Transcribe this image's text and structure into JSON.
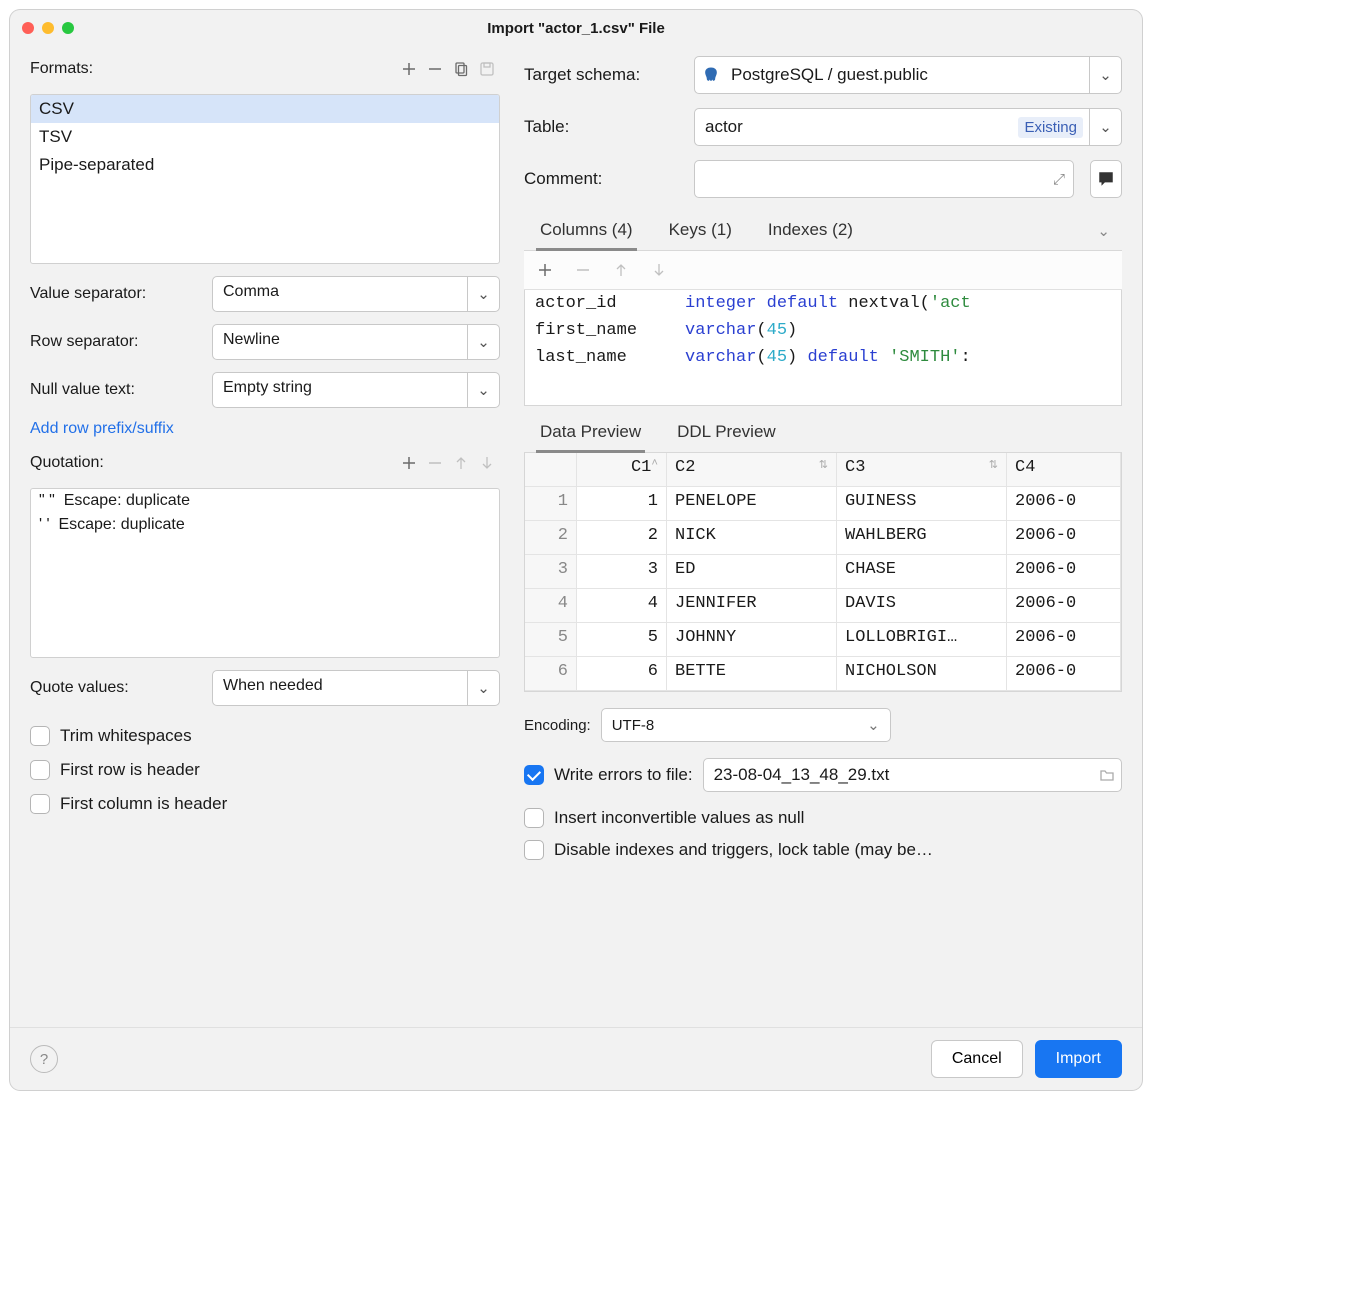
{
  "colors": {
    "close": "#ff5f57",
    "min": "#febc2e",
    "max": "#28c840",
    "accent": "#1876f2"
  },
  "title": "Import \"actor_1.csv\" File",
  "formats": {
    "label": "Formats:",
    "items": [
      "CSV",
      "TSV",
      "Pipe-separated"
    ],
    "selected": 0
  },
  "value_sep": {
    "label": "Value separator:",
    "value": "Comma"
  },
  "row_sep": {
    "label": "Row separator:",
    "value": "Newline"
  },
  "null_text": {
    "label": "Null value text:",
    "value": "Empty string"
  },
  "add_prefix_link": "Add row prefix/suffix",
  "quotation": {
    "label": "Quotation:",
    "items": [
      "\" \"  Escape: duplicate",
      "' '  Escape: duplicate"
    ]
  },
  "quote_values": {
    "label": "Quote values:",
    "value": "When needed"
  },
  "checks": {
    "trim": "Trim whitespaces",
    "first_row": "First row is header",
    "first_col": "First column is header"
  },
  "target_schema": {
    "label": "Target schema:",
    "value": "PostgreSQL / guest.public"
  },
  "table": {
    "label": "Table:",
    "value": "actor",
    "badge": "Existing"
  },
  "comment": {
    "label": "Comment:"
  },
  "tabs": {
    "columns": "Columns (4)",
    "keys": "Keys (1)",
    "indexes": "Indexes (2)"
  },
  "columns": [
    {
      "name": "actor_id",
      "type_html": "<span class='kw'>integer</span> <span class='kw'>default</span> nextval(<span class='str'>'act</span>"
    },
    {
      "name": "first_name",
      "type_html": "<span class='kw'>varchar</span>(<span class='num'>45</span>)"
    },
    {
      "name": "last_name",
      "type_html": "<span class='kw'>varchar</span>(<span class='num'>45</span>) <span class='kw'>default</span> <span class='str'>'SMITH'</span>:"
    }
  ],
  "preview_tabs": {
    "data": "Data Preview",
    "ddl": "DDL Preview"
  },
  "grid": {
    "headers": [
      "C1",
      "C2",
      "C3",
      "C4"
    ],
    "rows": [
      [
        "1",
        "PENELOPE",
        "GUINESS",
        "2006-0"
      ],
      [
        "2",
        "NICK",
        "WAHLBERG",
        "2006-0"
      ],
      [
        "3",
        "ED",
        "CHASE",
        "2006-0"
      ],
      [
        "4",
        "JENNIFER",
        "DAVIS",
        "2006-0"
      ],
      [
        "5",
        "JOHNNY",
        "LOLLOBRIGI…",
        "2006-0"
      ],
      [
        "6",
        "BETTE",
        "NICHOLSON",
        "2006-0"
      ]
    ]
  },
  "encoding": {
    "label": "Encoding:",
    "value": "UTF-8"
  },
  "write_errors": {
    "label": "Write errors to file:",
    "checked": true,
    "file": "23-08-04_13_48_29.txt"
  },
  "insert_null": "Insert inconvertible values as null",
  "disable_idx": "Disable indexes and triggers, lock table (may be…",
  "buttons": {
    "cancel": "Cancel",
    "import": "Import"
  }
}
